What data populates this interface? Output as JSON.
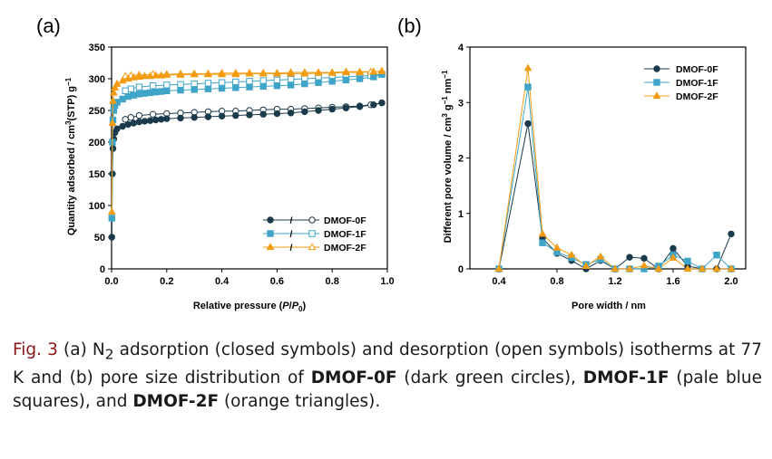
{
  "colors": {
    "dmof0f": "#1b3a4b",
    "dmof1f": "#3fa4c8",
    "dmof2f": "#f39c12"
  },
  "chart_data": [
    {
      "panel": "(a)",
      "type": "scatter",
      "xlabel_pre": "Relative pressure (",
      "xlabel_p": "P",
      "xlabel_slash": "/",
      "xlabel_p0": "P",
      "xlabel_p0_sub": "0",
      "xlabel_post": ")",
      "ylabel": "Quantity adsorbed / cm",
      "ylabel_sup": "3",
      "ylabel_mid": "(STP) g",
      "ylabel_sup2": "−1",
      "xlim": [
        0,
        1.0
      ],
      "ylim": [
        0,
        350
      ],
      "x_ticks": [
        "0.0",
        "0.2",
        "0.4",
        "0.6",
        "0.8",
        "1.0"
      ],
      "y_ticks": [
        "0",
        "50",
        "100",
        "150",
        "200",
        "250",
        "300",
        "350"
      ],
      "legend": [
        "DMOF-0F",
        "DMOF-1F",
        "DMOF-2F"
      ],
      "series": [
        {
          "name": "DMOF-0F",
          "marker": "circle",
          "color": "#1b3a4b",
          "adsorption": [
            [
              0.001,
              50
            ],
            [
              0.003,
              150
            ],
            [
              0.005,
              190
            ],
            [
              0.008,
              205
            ],
            [
              0.012,
              215
            ],
            [
              0.02,
              221
            ],
            [
              0.04,
              225
            ],
            [
              0.06,
              228
            ],
            [
              0.08,
              230
            ],
            [
              0.1,
              232
            ],
            [
              0.12,
              233
            ],
            [
              0.14,
              234
            ],
            [
              0.16,
              235
            ],
            [
              0.18,
              236
            ],
            [
              0.2,
              237
            ],
            [
              0.25,
              238
            ],
            [
              0.3,
              239
            ],
            [
              0.35,
              240
            ],
            [
              0.4,
              241
            ],
            [
              0.45,
              242
            ],
            [
              0.5,
              243
            ],
            [
              0.55,
              244
            ],
            [
              0.6,
              245
            ],
            [
              0.65,
              246
            ],
            [
              0.7,
              248
            ],
            [
              0.75,
              250
            ],
            [
              0.8,
              252
            ],
            [
              0.85,
              254
            ],
            [
              0.9,
              256
            ],
            [
              0.95,
              259
            ],
            [
              0.98,
              262
            ]
          ],
          "desorption": [
            [
              0.98,
              262
            ],
            [
              0.94,
              259
            ],
            [
              0.9,
              257
            ],
            [
              0.85,
              256
            ],
            [
              0.8,
              255
            ],
            [
              0.75,
              254
            ],
            [
              0.7,
              253
            ],
            [
              0.65,
              252
            ],
            [
              0.6,
              252
            ],
            [
              0.55,
              251
            ],
            [
              0.5,
              250
            ],
            [
              0.45,
              249
            ],
            [
              0.4,
              249
            ],
            [
              0.35,
              248
            ],
            [
              0.3,
              247
            ],
            [
              0.25,
              246
            ],
            [
              0.2,
              245
            ],
            [
              0.15,
              244
            ],
            [
              0.1,
              242
            ],
            [
              0.07,
              239
            ],
            [
              0.05,
              236
            ]
          ]
        },
        {
          "name": "DMOF-1F",
          "marker": "square",
          "color": "#3fa4c8",
          "adsorption": [
            [
              0.001,
              80
            ],
            [
              0.003,
              200
            ],
            [
              0.005,
              235
            ],
            [
              0.008,
              250
            ],
            [
              0.012,
              258
            ],
            [
              0.02,
              263
            ],
            [
              0.04,
              268
            ],
            [
              0.06,
              272
            ],
            [
              0.08,
              274
            ],
            [
              0.1,
              276
            ],
            [
              0.12,
              277
            ],
            [
              0.14,
              278
            ],
            [
              0.16,
              279
            ],
            [
              0.18,
              280
            ],
            [
              0.2,
              281
            ],
            [
              0.25,
              282
            ],
            [
              0.3,
              283
            ],
            [
              0.35,
              284
            ],
            [
              0.4,
              285
            ],
            [
              0.45,
              286
            ],
            [
              0.5,
              287
            ],
            [
              0.55,
              288
            ],
            [
              0.6,
              289
            ],
            [
              0.65,
              290
            ],
            [
              0.7,
              292
            ],
            [
              0.75,
              294
            ],
            [
              0.8,
              296
            ],
            [
              0.85,
              298
            ],
            [
              0.9,
              300
            ],
            [
              0.95,
              303
            ],
            [
              0.98,
              307
            ]
          ],
          "desorption": [
            [
              0.98,
              307
            ],
            [
              0.94,
              305
            ],
            [
              0.9,
              304
            ],
            [
              0.85,
              303
            ],
            [
              0.8,
              302
            ],
            [
              0.75,
              301
            ],
            [
              0.7,
              300
            ],
            [
              0.65,
              299
            ],
            [
              0.6,
              298
            ],
            [
              0.55,
              297
            ],
            [
              0.5,
              296
            ],
            [
              0.45,
              295
            ],
            [
              0.4,
              294
            ],
            [
              0.35,
              293
            ],
            [
              0.3,
              292
            ],
            [
              0.25,
              291
            ],
            [
              0.2,
              290
            ],
            [
              0.15,
              289
            ],
            [
              0.1,
              287
            ],
            [
              0.07,
              284
            ],
            [
              0.05,
              281
            ]
          ]
        },
        {
          "name": "DMOF-2F",
          "marker": "triangle",
          "color": "#f39c12",
          "adsorption": [
            [
              0.001,
              90
            ],
            [
              0.003,
              230
            ],
            [
              0.005,
              265
            ],
            [
              0.008,
              278
            ],
            [
              0.012,
              286
            ],
            [
              0.02,
              292
            ],
            [
              0.04,
              297
            ],
            [
              0.06,
              300
            ],
            [
              0.08,
              302
            ],
            [
              0.1,
              303
            ],
            [
              0.12,
              304
            ],
            [
              0.14,
              304
            ],
            [
              0.16,
              305
            ],
            [
              0.18,
              305
            ],
            [
              0.2,
              306
            ],
            [
              0.25,
              306
            ],
            [
              0.3,
              307
            ],
            [
              0.35,
              307
            ],
            [
              0.4,
              307
            ],
            [
              0.45,
              307
            ],
            [
              0.5,
              308
            ],
            [
              0.55,
              308
            ],
            [
              0.6,
              308
            ],
            [
              0.65,
              308
            ],
            [
              0.7,
              308
            ],
            [
              0.75,
              309
            ],
            [
              0.8,
              309
            ],
            [
              0.85,
              310
            ],
            [
              0.9,
              310
            ],
            [
              0.95,
              311
            ],
            [
              0.98,
              312
            ]
          ],
          "desorption": [
            [
              0.98,
              312
            ],
            [
              0.94,
              311
            ],
            [
              0.9,
              311
            ],
            [
              0.85,
              311
            ],
            [
              0.8,
              310
            ],
            [
              0.75,
              310
            ],
            [
              0.7,
              310
            ],
            [
              0.65,
              310
            ],
            [
              0.6,
              309
            ],
            [
              0.55,
              309
            ],
            [
              0.5,
              309
            ],
            [
              0.45,
              309
            ],
            [
              0.4,
              309
            ],
            [
              0.35,
              308
            ],
            [
              0.3,
              308
            ],
            [
              0.25,
              308
            ],
            [
              0.2,
              307
            ],
            [
              0.15,
              307
            ],
            [
              0.1,
              306
            ],
            [
              0.07,
              305
            ],
            [
              0.05,
              304
            ]
          ]
        }
      ]
    },
    {
      "panel": "(b)",
      "type": "line",
      "xlabel": "Pore width / nm",
      "ylabel": "Different pore volume / cm",
      "ylabel_sup": "3",
      "ylabel_mid": " g",
      "ylabel_sup2": "−1",
      "ylabel_end": " nm",
      "ylabel_sup3": "−1",
      "xlim": [
        0.2,
        2.1
      ],
      "ylim": [
        0,
        4
      ],
      "x_ticks": [
        "0.4",
        "0.8",
        "1.2",
        "1.6",
        "2.0"
      ],
      "y_ticks": [
        "0",
        "1",
        "2",
        "3",
        "4"
      ],
      "legend": [
        "DMOF-0F",
        "DMOF-1F",
        "DMOF-2F"
      ],
      "series": [
        {
          "name": "DMOF-0F",
          "marker": "circle",
          "color": "#1b3a4b",
          "points": [
            [
              0.4,
              0
            ],
            [
              0.6,
              2.62
            ],
            [
              0.7,
              0.55
            ],
            [
              0.8,
              0.28
            ],
            [
              0.9,
              0.15
            ],
            [
              1.0,
              0.0
            ],
            [
              1.1,
              0.15
            ],
            [
              1.2,
              0.0
            ],
            [
              1.3,
              0.21
            ],
            [
              1.4,
              0.19
            ],
            [
              1.5,
              0.0
            ],
            [
              1.6,
              0.37
            ],
            [
              1.7,
              0.05
            ],
            [
              1.8,
              0.0
            ],
            [
              1.9,
              0.0
            ],
            [
              2.0,
              0.63
            ]
          ]
        },
        {
          "name": "DMOF-1F",
          "marker": "square",
          "color": "#3fa4c8",
          "points": [
            [
              0.4,
              0
            ],
            [
              0.6,
              3.28
            ],
            [
              0.7,
              0.47
            ],
            [
              0.8,
              0.3
            ],
            [
              0.9,
              0.2
            ],
            [
              1.0,
              0.08
            ],
            [
              1.1,
              0.17
            ],
            [
              1.2,
              0.0
            ],
            [
              1.3,
              0.0
            ],
            [
              1.4,
              0.0
            ],
            [
              1.5,
              0.05
            ],
            [
              1.6,
              0.25
            ],
            [
              1.7,
              0.14
            ],
            [
              1.8,
              0.0
            ],
            [
              1.9,
              0.25
            ],
            [
              2.0,
              0.0
            ]
          ]
        },
        {
          "name": "DMOF-2F",
          "marker": "triangle",
          "color": "#f39c12",
          "points": [
            [
              0.4,
              0
            ],
            [
              0.6,
              3.62
            ],
            [
              0.7,
              0.63
            ],
            [
              0.8,
              0.38
            ],
            [
              0.9,
              0.25
            ],
            [
              1.0,
              0.05
            ],
            [
              1.1,
              0.22
            ],
            [
              1.2,
              0.0
            ],
            [
              1.3,
              0.0
            ],
            [
              1.4,
              0.06
            ],
            [
              1.5,
              0.0
            ],
            [
              1.6,
              0.2
            ],
            [
              1.7,
              0.0
            ],
            [
              1.8,
              0.0
            ],
            [
              1.9,
              0.0
            ],
            [
              2.0,
              0.0
            ]
          ]
        }
      ]
    }
  ],
  "caption": {
    "label": "Fig. 3",
    "t1": "  (a) N",
    "t1_sub": "2",
    "t2": " adsorption (closed symbols) and desorption (open symbols) isotherms at 77 K and (b) pore size distribution of ",
    "b1": "DMOF-0F",
    "t3": " (dark green circles), ",
    "b2": "DMOF-1F",
    "t4": " (pale blue squares), and ",
    "b3": "DMOF-2F",
    "t5": " (orange triangles)."
  }
}
